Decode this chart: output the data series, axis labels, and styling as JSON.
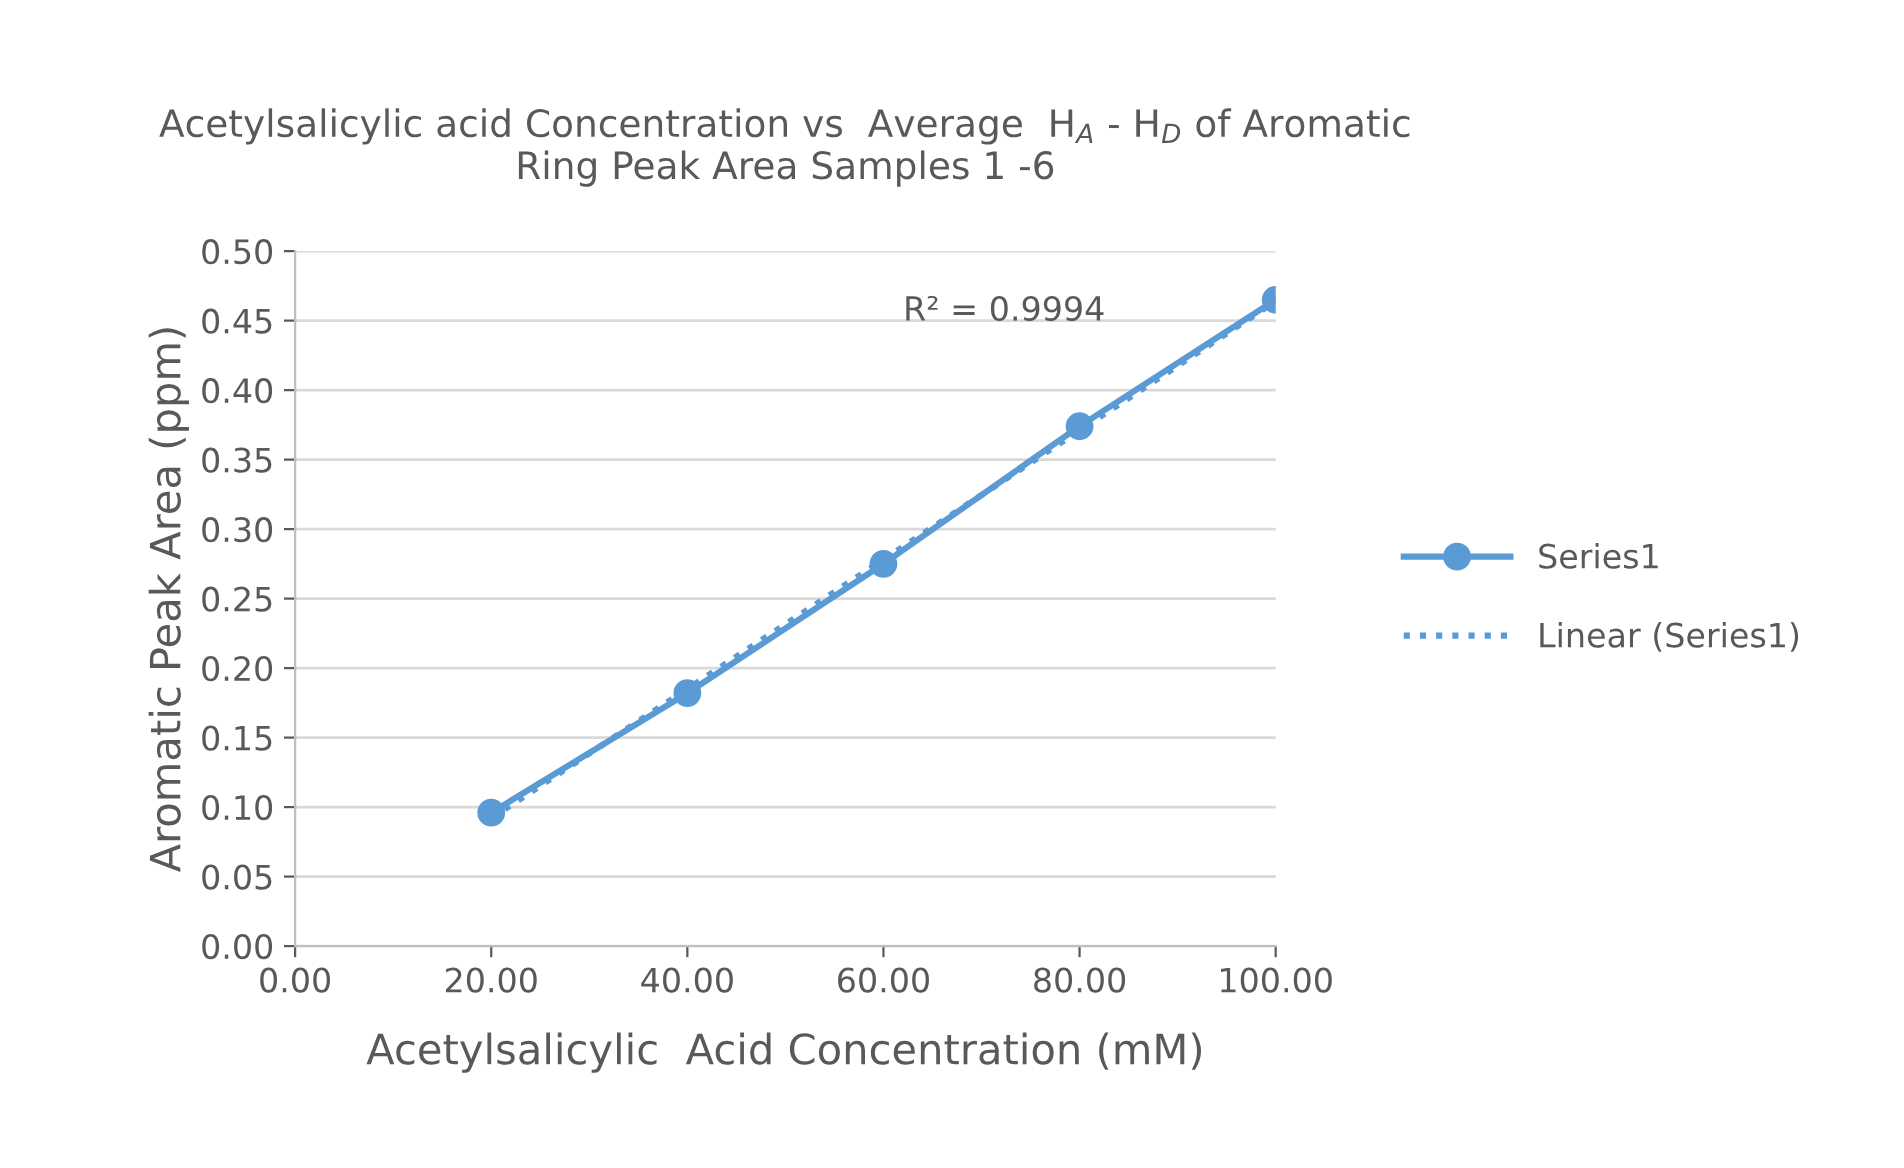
{
  "chart_data": {
    "type": "line",
    "title": "Acetylsalicylic acid Concentration vs  Average  H$_{A}$ - H$_{D}$ of Aromatic\nRing Peak Area Samples 1 -6",
    "xlabel": "Acetylsalicylic  Acid Concentration (mM)",
    "ylabel": "Aromatic Peak Area (ppm)",
    "annotations": [
      "R² = 0.9994"
    ],
    "series": [
      {
        "name": "Series1",
        "color": "#5b9bd5",
        "marker": "circle",
        "line_style": "solid",
        "x": [
          20,
          40,
          60,
          80,
          100
        ],
        "values": [
          0.096,
          0.182,
          0.275,
          0.374,
          0.465
        ]
      },
      {
        "name": "Linear (Series1)",
        "type": "line",
        "color": "#5b9bd5",
        "marker": "none",
        "line_style": "dotted",
        "x": [
          20,
          100
        ],
        "values": [
          0.092,
          0.464
        ]
      }
    ],
    "xlim": [
      0,
      100
    ],
    "xticks": [
      {
        "value": 0,
        "label": "0.00"
      },
      {
        "value": 20,
        "label": "20.00"
      },
      {
        "value": 40,
        "label": "40.00"
      },
      {
        "value": 60,
        "label": "60.00"
      },
      {
        "value": 80,
        "label": "80.00"
      },
      {
        "value": 100,
        "label": "100.00"
      }
    ],
    "ylim": [
      0,
      0.5
    ],
    "yticks": [
      {
        "value": 0,
        "label": "0.00"
      },
      {
        "value": 0.05,
        "label": "0.05"
      },
      {
        "value": 0.1,
        "label": "0.10"
      },
      {
        "value": 0.15,
        "label": "0.15"
      },
      {
        "value": 0.2,
        "label": "0.20"
      },
      {
        "value": 0.25,
        "label": "0.25"
      },
      {
        "value": 0.3,
        "label": "0.30"
      },
      {
        "value": 0.35,
        "label": "0.35"
      },
      {
        "value": 0.4,
        "label": "0.40"
      },
      {
        "value": 0.45,
        "label": "0.45"
      },
      {
        "value": 0.5,
        "label": "0.50"
      }
    ],
    "grid": "y",
    "legend": "right"
  }
}
